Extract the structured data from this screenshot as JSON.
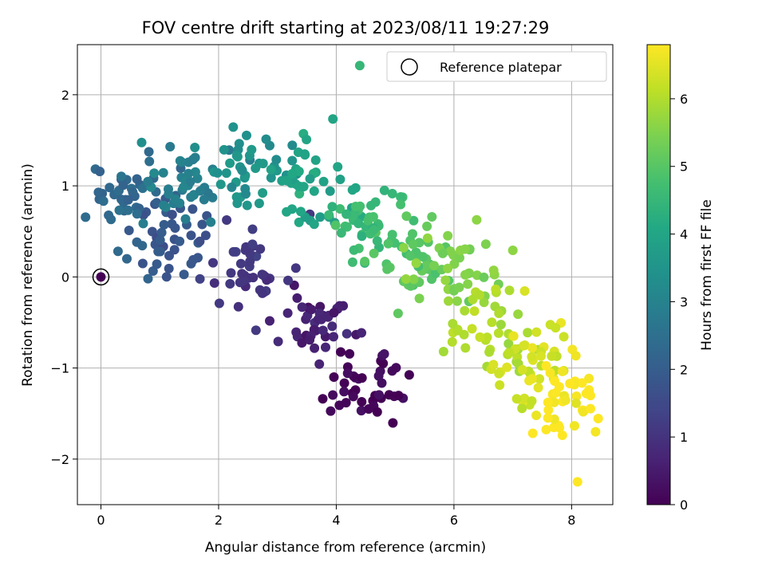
{
  "chart_data": {
    "type": "scatter",
    "title": "FOV centre drift starting at 2023/08/11 19:27:29",
    "xlabel": "Angular distance from reference (arcmin)",
    "ylabel": "Rotation from reference (arcmin)",
    "xlim": [
      -0.4,
      8.7
    ],
    "ylim": [
      -2.5,
      2.55
    ],
    "xticks": [
      "0",
      "2",
      "4",
      "6",
      "8"
    ],
    "yticks": [
      "−2",
      "−1",
      "0",
      "1",
      "2"
    ],
    "grid": true,
    "legend": {
      "placement": "top-right",
      "entries": [
        "Reference platepar"
      ]
    },
    "colorbar": {
      "label": "Hours from first FF file",
      "range": [
        0,
        6.8
      ],
      "ticks": [
        "0",
        "1",
        "2",
        "3",
        "4",
        "5",
        "6"
      ],
      "colormap": "viridis"
    },
    "reference_point": {
      "x": 0,
      "y": 0,
      "hours": 0
    },
    "cluster_centres": [
      {
        "x": 4.5,
        "y": -1.2,
        "hours": 0.1
      },
      {
        "x": 3.7,
        "y": -0.45,
        "hours": 0.6
      },
      {
        "x": 2.6,
        "y": 0.15,
        "hours": 1.1
      },
      {
        "x": 1.2,
        "y": 0.45,
        "hours": 1.8
      },
      {
        "x": 0.5,
        "y": 0.85,
        "hours": 2.3
      },
      {
        "x": 1.4,
        "y": 1.05,
        "hours": 3.0
      },
      {
        "x": 2.5,
        "y": 1.15,
        "hours": 3.5
      },
      {
        "x": 3.5,
        "y": 1.05,
        "hours": 4.0
      },
      {
        "x": 4.5,
        "y": 0.55,
        "hours": 4.6
      },
      {
        "x": 5.2,
        "y": 0.25,
        "hours": 5.0
      },
      {
        "x": 6.1,
        "y": 0.1,
        "hours": 5.5
      },
      {
        "x": 6.5,
        "y": -0.6,
        "hours": 6.0
      },
      {
        "x": 7.3,
        "y": -0.95,
        "hours": 6.4
      },
      {
        "x": 7.9,
        "y": -1.35,
        "hours": 6.8
      }
    ],
    "sample_points": [
      {
        "x": 8.1,
        "y": -2.25,
        "hours": 6.8
      },
      {
        "x": 8.25,
        "y": -1.28,
        "hours": 6.8
      },
      {
        "x": 4.4,
        "y": 2.32,
        "hours": 4.5
      },
      {
        "x": 4.55,
        "y": -1.45,
        "hours": 0.1
      },
      {
        "x": 5.05,
        "y": -0.4,
        "hours": 5.1
      },
      {
        "x": 7.4,
        "y": -1.52,
        "hours": 6.6
      },
      {
        "x": 0.8,
        "y": -0.02,
        "hours": 2.2
      }
    ]
  },
  "icons": {
    "legend_marker": "hollow-circle-marker"
  }
}
